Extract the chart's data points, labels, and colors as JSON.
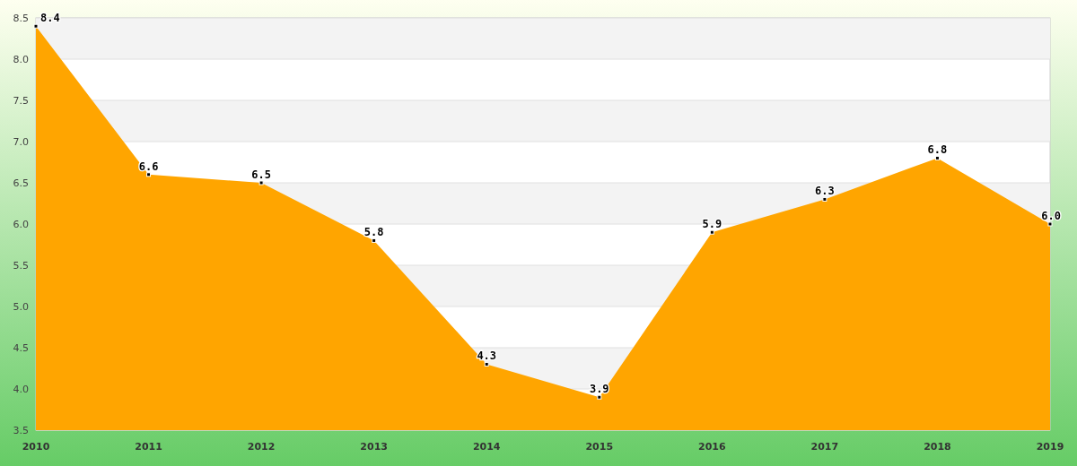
{
  "chart_data": {
    "type": "area",
    "categories": [
      "2010",
      "2011",
      "2012",
      "2013",
      "2014",
      "2015",
      "2016",
      "2017",
      "2018",
      "2019"
    ],
    "series": [
      {
        "color": "#ffa500",
        "values": [
          8.4,
          6.6,
          6.5,
          5.8,
          4.3,
          3.9,
          5.9,
          6.3,
          6.8,
          6.0
        ],
        "value_labels": [
          "8.4",
          "6.6",
          "6.5",
          "5.8",
          "4.3",
          "3.9",
          "5.9",
          "6.3",
          "6.8",
          "6.0"
        ]
      }
    ],
    "ylim": [
      3.5,
      8.5
    ],
    "yticks": [
      3.5,
      {
        "value": 4,
        "label": "4.0"
      },
      4.5,
      {
        "value": 5,
        "label": "5.0"
      },
      5.5,
      {
        "value": 6,
        "label": "6.0"
      },
      6.5,
      {
        "value": 7,
        "label": "7.0"
      },
      7.5,
      {
        "value": 8,
        "label": "8.0"
      },
      8.5
    ],
    "grid": "y",
    "marker": "square"
  }
}
